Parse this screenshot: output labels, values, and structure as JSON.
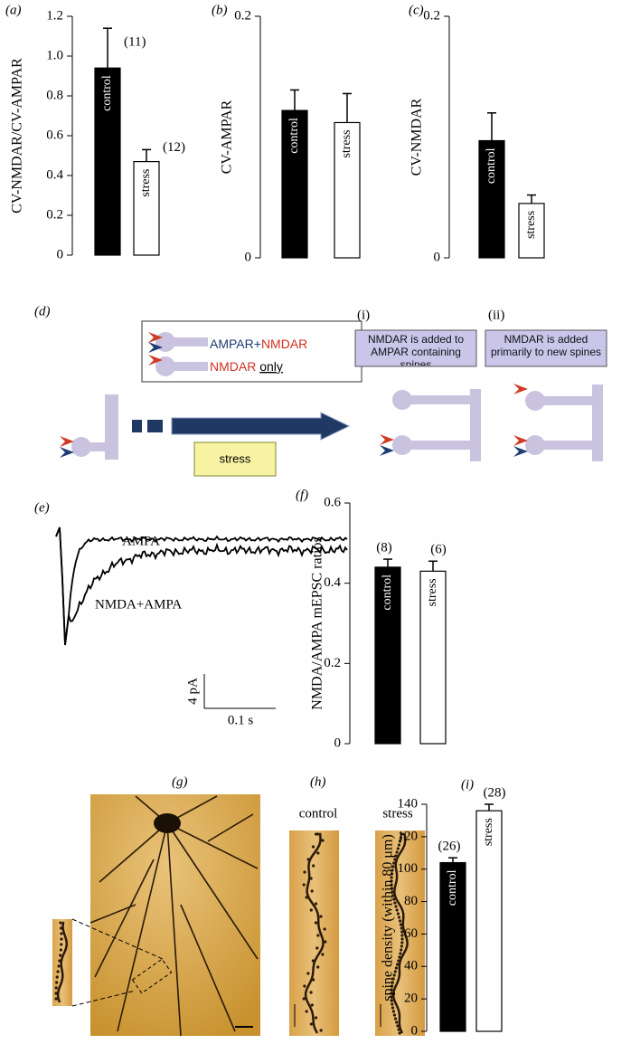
{
  "chart_data": [
    {
      "type": "bar",
      "label": "(a)",
      "ylabel": "CV-NMDAR/CV-AMPAR",
      "categories": [
        "control",
        "stress"
      ],
      "values": [
        0.94,
        0.47
      ],
      "errors": [
        0.2,
        0.06
      ],
      "colors": [
        "#000000",
        "#ffffff"
      ],
      "annotations": [
        "(11)",
        "(12)"
      ],
      "ylim": [
        0,
        1.2
      ],
      "yticks": [
        0,
        0.2,
        0.4,
        0.6,
        0.8,
        {
          "value": 1,
          "label": "1.0"
        },
        1.2
      ]
    },
    {
      "type": "bar",
      "label": "(b)",
      "ylabel": "CV-AMPAR",
      "categories": [
        "control",
        "stress"
      ],
      "values": [
        0.122,
        0.112
      ],
      "errors": [
        0.017,
        0.024
      ],
      "colors": [
        "#000000",
        "#ffffff"
      ],
      "ylim": [
        0,
        0.2
      ],
      "yticks": [
        0,
        0.2
      ]
    },
    {
      "type": "bar",
      "label": "(c)",
      "ylabel": "CV-NMDAR",
      "categories": [
        "control",
        "stress"
      ],
      "values": [
        0.097,
        0.045
      ],
      "errors": [
        0.023,
        0.007
      ],
      "colors": [
        "#000000",
        "#ffffff"
      ],
      "ylim": [
        0,
        0.2
      ],
      "yticks": [
        0,
        0.2
      ]
    },
    {
      "type": "bar",
      "label": "(f)",
      "ylabel": "NMDA/AMPA mEPSC ratios",
      "categories": [
        "control",
        "stress"
      ],
      "values": [
        0.44,
        0.43
      ],
      "errors": [
        0.02,
        0.025
      ],
      "colors": [
        "#000000",
        "#ffffff"
      ],
      "annotations": [
        "(8)",
        "(6)"
      ],
      "ylim": [
        0,
        0.6
      ],
      "yticks": [
        0,
        0.2,
        0.4,
        0.6
      ]
    },
    {
      "type": "bar",
      "label": "(i)",
      "ylabel": "spine density (within 80 μm)",
      "categories": [
        "control",
        "stress"
      ],
      "values": [
        104,
        136
      ],
      "errors": [
        3,
        4
      ],
      "colors": [
        "#000000",
        "#ffffff"
      ],
      "annotations": [
        "(26)",
        "(28)"
      ],
      "ylim": [
        0,
        140
      ],
      "yticks": [
        0,
        20,
        40,
        60,
        80,
        100,
        120,
        140
      ]
    }
  ],
  "diagram": {
    "label": "(d)",
    "legend": [
      {
        "parts": [
          "AMPAR",
          "+",
          "NMDAR"
        ]
      },
      {
        "parts": [
          "NMDAR",
          "only"
        ]
      }
    ],
    "stress": "stress",
    "outcomes": [
      {
        "label": "(i)",
        "text": "NMDAR is added to AMPAR containing spines"
      },
      {
        "label": "(ii)",
        "text": "NMDAR is added primarily to new spines"
      }
    ]
  },
  "traces": {
    "label": "(e)",
    "ampa": "AMPA",
    "nmda_ampa": "NMDA+AMPA",
    "scale_y": "4 pA",
    "scale_x": "0.1 s"
  },
  "images": {
    "g_label": "(g)",
    "h_label": "(h)",
    "h_titles": [
      "control",
      "stress"
    ]
  }
}
